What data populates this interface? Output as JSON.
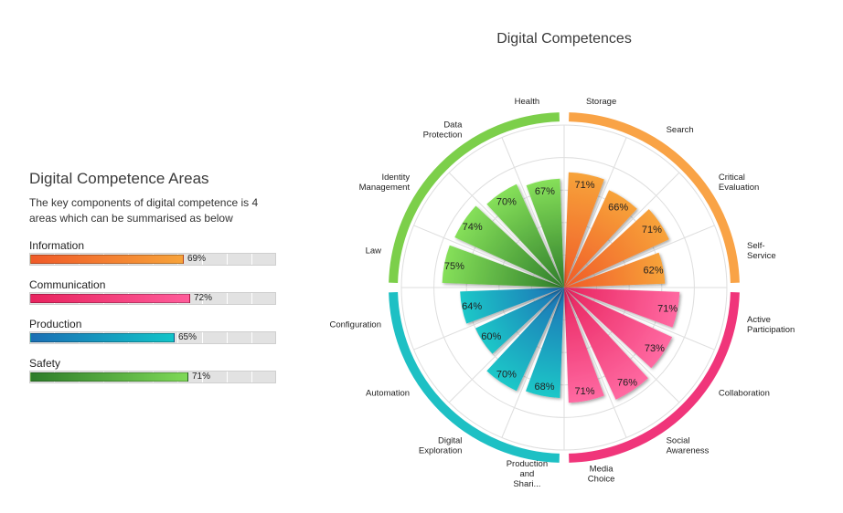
{
  "panel": {
    "title": "Digital Competence Areas",
    "subtitle": "The key components of digital competence is 4 areas which can be summarised as below",
    "areas": [
      {
        "name": "Information",
        "value": 69,
        "label": "69%",
        "colors": [
          "#f05a28",
          "#f7a33a"
        ]
      },
      {
        "name": "Communication",
        "value": 72,
        "label": "72%",
        "colors": [
          "#e8235e",
          "#ff5c9a"
        ]
      },
      {
        "name": "Production",
        "value": 65,
        "label": "65%",
        "colors": [
          "#1a6fb5",
          "#12c4c8"
        ]
      },
      {
        "name": "Safety",
        "value": 71,
        "label": "71%",
        "colors": [
          "#2e7d2a",
          "#7ed957"
        ]
      }
    ]
  },
  "chart_data": {
    "type": "polar-bar",
    "title": "Digital Competences",
    "rlim": [
      0,
      100
    ],
    "grid": true,
    "groups": [
      {
        "name": "Information",
        "ring_color": "#f9a346",
        "colors": [
          "#f05a28",
          "#f7a33a"
        ],
        "categories": [
          "Storage",
          "Search",
          "Critical\nEvaluation",
          "Self-\nService"
        ]
      },
      {
        "name": "Communication",
        "ring_color": "#f0357a",
        "colors": [
          "#e8235e",
          "#ff6aa2"
        ],
        "categories": [
          "Active\nParticipation",
          "Collaboration",
          "Social\nAwareness",
          "Media\nChoice"
        ]
      },
      {
        "name": "Production",
        "ring_color": "#1ec0c4",
        "colors": [
          "#1a6fb5",
          "#1ec8c8"
        ],
        "categories": [
          "Production\nand\nShari...",
          "Digital\nExploration",
          "Automation",
          "Configuration"
        ]
      },
      {
        "name": "Safety",
        "ring_color": "#7ccf4a",
        "colors": [
          "#2e7d2a",
          "#86e05a"
        ],
        "categories": [
          "Law",
          "Identity\nManagement",
          "Data\nProtection",
          "Health"
        ]
      }
    ],
    "categories": [
      "Storage",
      "Search",
      "Critical\nEvaluation",
      "Self-\nService",
      "Active\nParticipation",
      "Collaboration",
      "Social\nAwareness",
      "Media\nChoice",
      "Production\nand\nShari...",
      "Digital\nExploration",
      "Automation",
      "Configuration",
      "Law",
      "Identity\nManagement",
      "Data\nProtection",
      "Health"
    ],
    "values": [
      71,
      66,
      71,
      62,
      71,
      73,
      76,
      71,
      68,
      70,
      60,
      64,
      75,
      74,
      70,
      67
    ],
    "data_labels": [
      "71%",
      "66%",
      "71%",
      "62%",
      "71%",
      "73%",
      "76%",
      "71%",
      "68%",
      "70%",
      "60%",
      "64%",
      "75%",
      "74%",
      "70%",
      "67%"
    ]
  }
}
